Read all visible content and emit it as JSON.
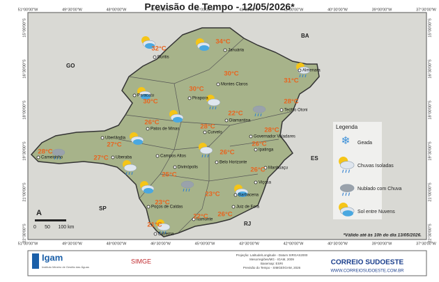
{
  "header": {
    "title": "Previsão de Tempo - 12/05/2026*"
  },
  "map": {
    "lon_labels": [
      "51°00'00\"W",
      "49°30'00\"W",
      "48°00'00\"W",
      "46°30'00\"W",
      "45°00'00\"W",
      "43°30'00\"W",
      "42°00'00\"W",
      "40°30'00\"W",
      "39°00'00\"W",
      "37°30'00\"W"
    ],
    "lat_labels": [
      "15°00'00\"S",
      "16°30'00\"S",
      "18°00'00\"S",
      "19°30'00\"S",
      "21°00'00\"S",
      "22°30'00\"S"
    ],
    "states": [
      "BA",
      "GO",
      "ES",
      "SP",
      "RJ"
    ],
    "cities": [
      {
        "name": "Buritis",
        "temp": "32°C"
      },
      {
        "name": "Januária",
        "temp": "34°C"
      },
      {
        "name": "Montes Claros",
        "temp": "30°C"
      },
      {
        "name": "Almenara",
        "temp": "31°C"
      },
      {
        "name": "Paracatu",
        "temp": "30°C"
      },
      {
        "name": "Pirapora",
        "temp": "30°C"
      },
      {
        "name": "Diamantina",
        "temp": "22°C"
      },
      {
        "name": "Teófilo Otoni",
        "temp": "28°C"
      },
      {
        "name": "Patos de Minas",
        "temp": "26°C"
      },
      {
        "name": "Curvelo",
        "temp": "28°C"
      },
      {
        "name": "Governador Valadares",
        "temp": "28°C"
      },
      {
        "name": "Uberlândia",
        "temp": "27°C"
      },
      {
        "name": "Carneirinho",
        "temp": "28°C"
      },
      {
        "name": "Uberaba",
        "temp": "27°C"
      },
      {
        "name": "Campos Altos"
      },
      {
        "name": "Divinópolis",
        "temp": "25°C"
      },
      {
        "name": "Belo Horizonte",
        "temp": "26°C"
      },
      {
        "name": "Ipatinga",
        "temp": "26°C"
      },
      {
        "name": "Manhuaçu",
        "temp": "26°C"
      },
      {
        "name": "Viçosa"
      },
      {
        "name": "Barbacena",
        "temp": "23°C"
      },
      {
        "name": "Juiz de Fora",
        "temp": "26°C"
      },
      {
        "name": "Poços de Caldas",
        "temp": "23°C"
      },
      {
        "name": "Itamonte",
        "temp": "22°C"
      },
      {
        "name": "Extrema",
        "temp": "21°C"
      }
    ],
    "scale": {
      "north": "A",
      "labels": [
        "0",
        "50",
        "100 km"
      ]
    },
    "note": "*Válido até às 10h do dia 13/05/2026."
  },
  "legend": {
    "title": "Legenda",
    "items": [
      "Geada",
      "Chuvas Isoladas",
      "Nublado com Chuva",
      "Sol entre Nuvens"
    ]
  },
  "footer": {
    "igam": "Igam",
    "igam_sub": "Instituto Mineiro de Gestão das Águas",
    "simge": "SIMGE",
    "credits": [
      "Projeção: Latitude/Longitude - Datum SIRGAS2000",
      "Mesorregiões/MG - IGAM, 2009",
      "Basemap: ESRI",
      "Previsão do Tempo - SIMGE/IGAM, 2026"
    ],
    "brand": "CORREIO SUDOESTE",
    "url": "WWW.CORREIOSUDOESTE.COM.BR"
  }
}
